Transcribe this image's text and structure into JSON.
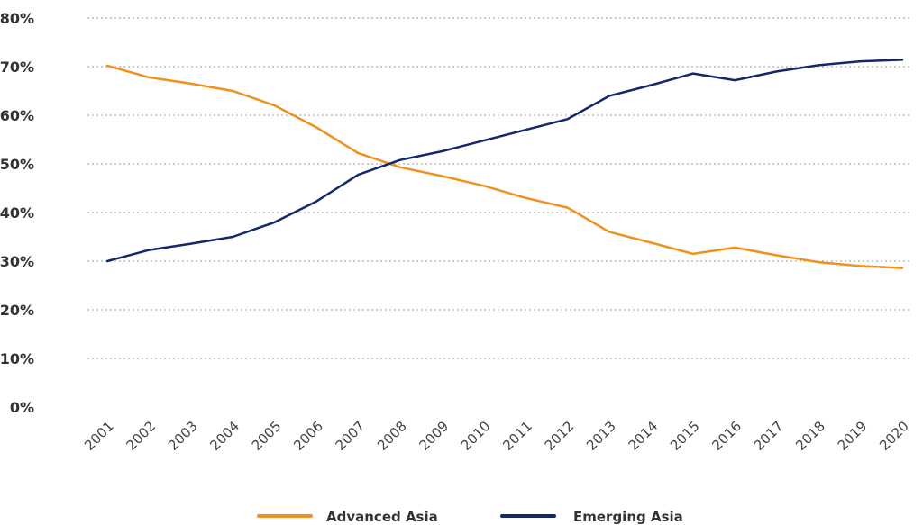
{
  "chart_data": {
    "type": "line",
    "title": "",
    "xlabel": "",
    "ylabel": "",
    "x": [
      "2001",
      "2002",
      "2003",
      "2004",
      "2005",
      "2006",
      "2007",
      "2008",
      "2009",
      "2010",
      "2011",
      "2012",
      "2013",
      "2014",
      "2015",
      "2016",
      "2017",
      "2018",
      "2019",
      "2020"
    ],
    "y_ticks": [
      "0%",
      "10%",
      "20%",
      "30%",
      "40%",
      "50%",
      "60%",
      "70%",
      "80%"
    ],
    "ylim": [
      0,
      80
    ],
    "grid": true,
    "legend_position": "bottom",
    "series": [
      {
        "name": "Advanced Asia",
        "color": "#F0901E",
        "values": [
          70.2,
          67.8,
          66.5,
          65.0,
          62.0,
          57.5,
          52.2,
          49.3,
          47.5,
          45.5,
          43.0,
          41.0,
          36.0,
          33.8,
          31.5,
          32.8,
          31.2,
          29.8,
          29.0,
          28.6
        ]
      },
      {
        "name": "Emerging Asia",
        "color": "#13286B",
        "values": [
          30.0,
          32.3,
          33.6,
          35.0,
          38.0,
          42.3,
          47.8,
          50.8,
          52.6,
          54.8,
          57.0,
          59.2,
          64.0,
          66.2,
          68.6,
          67.2,
          69.0,
          70.3,
          71.1,
          71.4
        ]
      }
    ]
  }
}
